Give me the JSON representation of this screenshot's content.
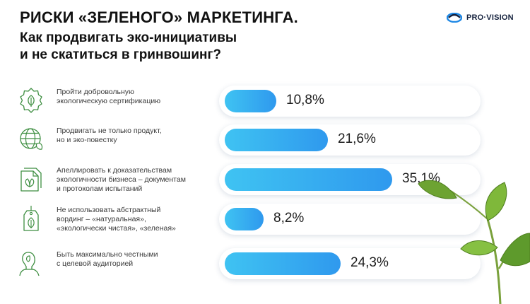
{
  "header": {
    "title": "РИСКИ «ЗЕЛЕНОГО» МАРКЕТИНГА.",
    "subtitle_line1": "Как продвигать эко-инициативы",
    "subtitle_line2": "и не скатиться в гринвошинг?"
  },
  "logo": {
    "text": "PRO·VISION"
  },
  "colors": {
    "bar_start": "#3fc3f2",
    "bar_end": "#2f99ee",
    "icon": "#3e8e41"
  },
  "chart_data": {
    "type": "bar",
    "orientation": "horizontal",
    "value_unit": "%",
    "xlim": [
      0,
      40
    ],
    "categories": [
      "Пройти добровольную экологическую сертификацию",
      "Продвигать не только продукт, но и эко-повестку",
      "Апеллировать к доказательствам экологичности бизнеса – документам и протоколам испытаний",
      "Не использовать абстрактный вординг – «натуральная», «экологически чистая», «зеленая»",
      "Быть максимально честными с целевой аудиторией"
    ],
    "values": [
      10.8,
      21.6,
      35.1,
      8.2,
      24.3
    ]
  },
  "rows": [
    {
      "line1": "Пройти добровольную",
      "line2": "экологическую сертификацию",
      "line3": "",
      "value_label": "10,8%",
      "icon": "eco-certificate-icon"
    },
    {
      "line1": "Продвигать не только продукт,",
      "line2": "но и эко-повестку",
      "line3": "",
      "value_label": "21,6%",
      "icon": "eco-globe-icon"
    },
    {
      "line1": "Апеллировать к доказательствам",
      "line2": "экологичности бизнеса – документам",
      "line3": "и протоколам испытаний",
      "value_label": "35,1%",
      "icon": "eco-document-icon"
    },
    {
      "line1": "Не использовать абстрактный",
      "line2": "вординг – «натуральная»,",
      "line3": "«экологически чистая», «зеленая»",
      "value_label": "8,2%",
      "icon": "eco-tag-icon"
    },
    {
      "line1": "Быть максимально честными",
      "line2": "с целевой аудиторией",
      "line3": "",
      "value_label": "24,3%",
      "icon": "eco-person-icon"
    }
  ]
}
